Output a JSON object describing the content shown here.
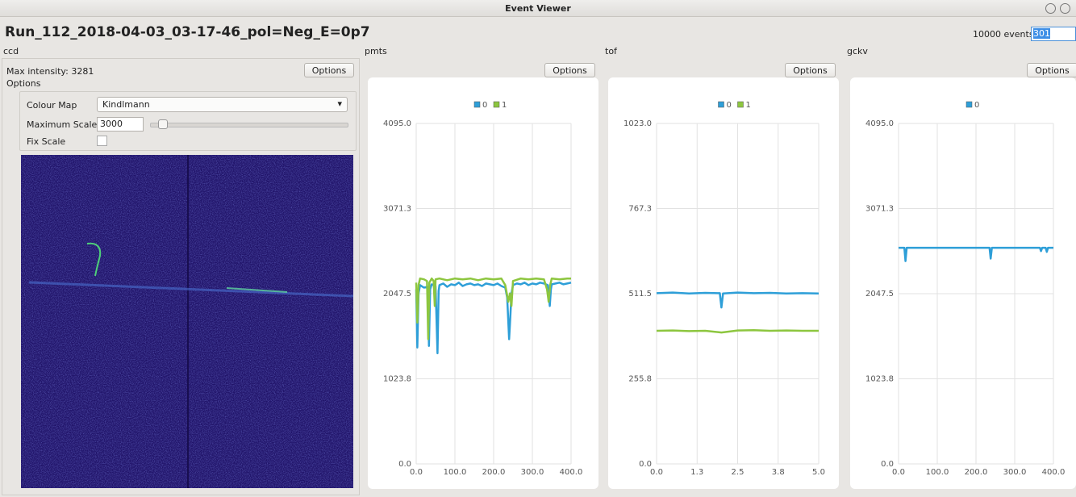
{
  "window": {
    "title": "Event Viewer"
  },
  "header": {
    "run": "Run_112_2018-04-03_03-17-46_pol=Neg_E=0p7",
    "events_label": "10000 events",
    "event_input": "301"
  },
  "ccd": {
    "label": "ccd",
    "max_intensity": "Max intensity: 3281",
    "options_button": "Options",
    "group_title": "Options",
    "colour_map_label": "Colour Map",
    "colour_map": "Kindlmann",
    "max_scale_label": "Maximum Scale",
    "max_scale": "3000",
    "fix_scale_label": "Fix Scale"
  },
  "chart_data": [
    {
      "type": "line",
      "title": "pmts",
      "button": "Options",
      "grid": true,
      "xlim": [
        0,
        400
      ],
      "xticks": [
        {
          "value": 0,
          "label": "0.0"
        },
        {
          "value": 100,
          "label": "100.0"
        },
        {
          "value": 200,
          "label": "200.0"
        },
        {
          "value": 300,
          "label": "300.0"
        },
        {
          "value": 400,
          "label": "400.0"
        }
      ],
      "ylim": [
        0,
        4095
      ],
      "yticks": [
        {
          "value": 0,
          "label": "0.0"
        },
        {
          "value": 1023.75,
          "label": "1023.8"
        },
        {
          "value": 2047.5,
          "label": "2047.5"
        },
        {
          "value": 3071.25,
          "label": "3071.3"
        },
        {
          "value": 4095,
          "label": "4095.0"
        }
      ],
      "series": [
        {
          "name": "0",
          "color": "#2e9fd8",
          "x": [
            0,
            3,
            6,
            10,
            20,
            30,
            33,
            36,
            40,
            50,
            55,
            58,
            60,
            70,
            80,
            90,
            100,
            110,
            120,
            130,
            140,
            150,
            160,
            170,
            180,
            190,
            200,
            210,
            220,
            230,
            235,
            240,
            243,
            246,
            250,
            260,
            270,
            280,
            290,
            300,
            310,
            320,
            330,
            340,
            345,
            348,
            350,
            360,
            370,
            380,
            390,
            400
          ],
          "values": [
            2100,
            1400,
            2050,
            2150,
            2120,
            2130,
            1420,
            2100,
            2160,
            2140,
            1330,
            2080,
            2150,
            2170,
            2130,
            2160,
            2150,
            2180,
            2140,
            2160,
            2170,
            2150,
            2160,
            2140,
            2170,
            2160,
            2150,
            2170,
            2140,
            2120,
            2000,
            1500,
            1750,
            2050,
            2150,
            2170,
            2160,
            2180,
            2150,
            2170,
            2160,
            2180,
            2170,
            2150,
            1900,
            2100,
            2160,
            2170,
            2180,
            2160,
            2170,
            2180
          ]
        },
        {
          "name": "1",
          "color": "#8dc63f",
          "x": [
            0,
            3,
            6,
            10,
            20,
            28,
            31,
            34,
            40,
            45,
            48,
            50,
            60,
            80,
            100,
            120,
            140,
            160,
            180,
            200,
            220,
            230,
            238,
            242,
            246,
            250,
            270,
            290,
            310,
            330,
            338,
            342,
            346,
            350,
            370,
            390,
            400
          ],
          "values": [
            2180,
            1700,
            2150,
            2230,
            2220,
            2200,
            1500,
            2180,
            2230,
            2200,
            1900,
            2220,
            2230,
            2210,
            2230,
            2220,
            2230,
            2210,
            2230,
            2220,
            2230,
            2150,
            1950,
            2050,
            1900,
            2200,
            2230,
            2220,
            2230,
            2220,
            2100,
            1950,
            2150,
            2230,
            2220,
            2230,
            2230
          ]
        }
      ]
    },
    {
      "type": "line",
      "title": "tof",
      "button": "Options",
      "grid": true,
      "xlim": [
        0,
        5
      ],
      "xticks": [
        {
          "value": 0,
          "label": "0.0"
        },
        {
          "value": 1.25,
          "label": "1.3"
        },
        2.5,
        {
          "value": 3.75,
          "label": "3.8"
        },
        {
          "value": 5,
          "label": "5.0"
        }
      ],
      "ylim": [
        0,
        1023
      ],
      "yticks": [
        {
          "value": 0,
          "label": "0.0"
        },
        {
          "value": 255.75,
          "label": "255.8"
        },
        511.5,
        {
          "value": 767.25,
          "label": "767.3"
        },
        {
          "value": 1023,
          "label": "1023.0"
        }
      ],
      "series": [
        {
          "name": "0",
          "color": "#2e9fd8",
          "x": [
            0,
            0.5,
            1,
            1.5,
            1.95,
            2.0,
            2.05,
            2.5,
            3,
            3.5,
            4,
            4.5,
            5
          ],
          "values": [
            513,
            515,
            512,
            514,
            513,
            470,
            512,
            515,
            513,
            514,
            512,
            513,
            512
          ]
        },
        {
          "name": "1",
          "color": "#8dc63f",
          "x": [
            0,
            0.5,
            1,
            1.5,
            2,
            2.5,
            3,
            3.5,
            4,
            4.5,
            5
          ],
          "values": [
            400,
            401,
            399,
            400,
            395,
            401,
            402,
            400,
            401,
            400,
            400
          ]
        }
      ]
    },
    {
      "type": "line",
      "title": "gckv",
      "button": "Options",
      "grid": true,
      "xlim": [
        0,
        400
      ],
      "xticks": [
        {
          "value": 0,
          "label": "0.0"
        },
        {
          "value": 100,
          "label": "100.0"
        },
        {
          "value": 200,
          "label": "200.0"
        },
        {
          "value": 300,
          "label": "300.0"
        },
        {
          "value": 400,
          "label": "400.0"
        }
      ],
      "ylim": [
        0,
        4095
      ],
      "yticks": [
        {
          "value": 0,
          "label": "0.0"
        },
        {
          "value": 1023.75,
          "label": "1023.8"
        },
        {
          "value": 2047.5,
          "label": "2047.5"
        },
        {
          "value": 3071.25,
          "label": "3071.3"
        },
        {
          "value": 4095,
          "label": "4095.0"
        }
      ],
      "series": [
        {
          "name": "0",
          "color": "#2e9fd8",
          "x": [
            0,
            15,
            18,
            21,
            50,
            100,
            150,
            200,
            235,
            238,
            241,
            300,
            365,
            368,
            371,
            380,
            383,
            386,
            400
          ],
          "values": [
            2600,
            2600,
            2440,
            2600,
            2600,
            2600,
            2600,
            2600,
            2600,
            2470,
            2600,
            2600,
            2600,
            2560,
            2600,
            2600,
            2550,
            2600,
            2600
          ]
        }
      ]
    }
  ]
}
